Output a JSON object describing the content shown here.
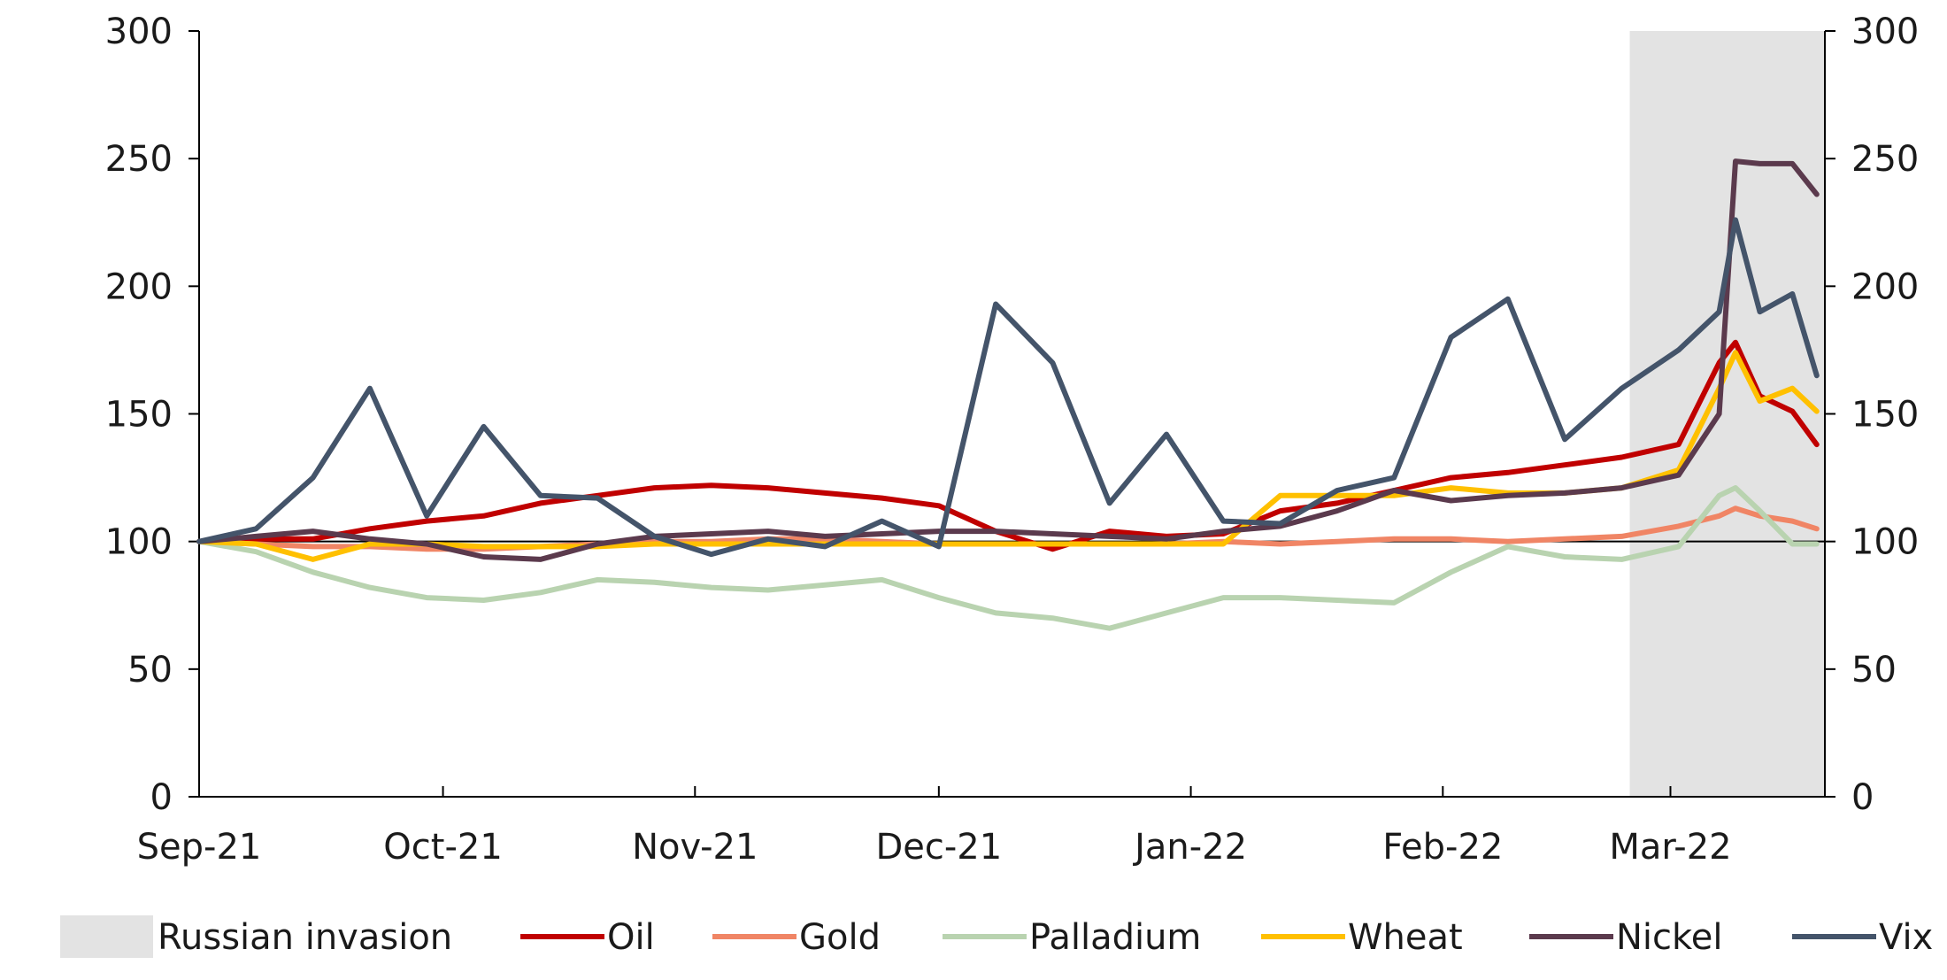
{
  "chart_data": {
    "type": "line",
    "title": "",
    "xlabel": "",
    "ylabel": "",
    "ylim": [
      0,
      300
    ],
    "y2lim": [
      0,
      300
    ],
    "y_ticks": [
      0,
      50,
      100,
      150,
      200,
      250,
      300
    ],
    "y_tick_labels": [
      "0",
      "50",
      "100",
      "150",
      "200",
      "250",
      "300"
    ],
    "x_tick_labels": [
      "Sep-21",
      "Oct-21",
      "Nov-21",
      "Dec-21",
      "Jan-22",
      "Feb-22",
      "Mar-22"
    ],
    "x_ticks": [
      "2021-09-01",
      "2021-10-01",
      "2021-11-01",
      "2021-12-01",
      "2022-01-01",
      "2022-02-01",
      "2022-03-01"
    ],
    "x_range": [
      "2021-09-01",
      "2022-03-20"
    ],
    "reference_line": 100,
    "grid": false,
    "legend_position": "bottom",
    "shaded_region": {
      "label": "Russian invasion",
      "x_start": "2022-02-24",
      "x_end": "2022-03-20",
      "color": "#e3e3e3"
    },
    "x": [
      "2021-09-01",
      "2021-09-08",
      "2021-09-15",
      "2021-09-22",
      "2021-09-29",
      "2021-10-06",
      "2021-10-13",
      "2021-10-20",
      "2021-10-27",
      "2021-11-03",
      "2021-11-10",
      "2021-11-17",
      "2021-11-24",
      "2021-12-01",
      "2021-12-08",
      "2021-12-15",
      "2021-12-22",
      "2021-12-29",
      "2022-01-05",
      "2022-01-12",
      "2022-01-19",
      "2022-01-26",
      "2022-02-02",
      "2022-02-09",
      "2022-02-16",
      "2022-02-23",
      "2022-03-02",
      "2022-03-07",
      "2022-03-09",
      "2022-03-12",
      "2022-03-16",
      "2022-03-19"
    ],
    "series": [
      {
        "name": "Oil",
        "color": "#c00000",
        "values": [
          100,
          101,
          101,
          105,
          108,
          110,
          115,
          118,
          121,
          122,
          121,
          119,
          117,
          114,
          104,
          97,
          104,
          102,
          103,
          112,
          115,
          120,
          125,
          127,
          130,
          133,
          138,
          170,
          178,
          157,
          151,
          138
        ]
      },
      {
        "name": "Gold",
        "color": "#f08565",
        "values": [
          100,
          99,
          98,
          98,
          97,
          97,
          98,
          99,
          100,
          100,
          101,
          101,
          100,
          99,
          99,
          99,
          99,
          99,
          100,
          99,
          100,
          101,
          101,
          100,
          101,
          102,
          106,
          110,
          113,
          110,
          108,
          105
        ]
      },
      {
        "name": "Palladium",
        "color": "#b9d3b0",
        "values": [
          100,
          96,
          88,
          82,
          78,
          77,
          80,
          85,
          84,
          82,
          81,
          83,
          85,
          78,
          72,
          70,
          66,
          72,
          78,
          78,
          77,
          76,
          88,
          98,
          94,
          93,
          98,
          118,
          121,
          112,
          99,
          99
        ]
      },
      {
        "name": "Wheat",
        "color": "#ffc000",
        "values": [
          100,
          99,
          93,
          99,
          99,
          98,
          98,
          98,
          99,
          99,
          99,
          99,
          99,
          99,
          99,
          99,
          99,
          99,
          99,
          118,
          118,
          118,
          121,
          119,
          119,
          121,
          128,
          160,
          174,
          155,
          160,
          151
        ]
      },
      {
        "name": "Nickel",
        "color": "#5b3a4d",
        "values": [
          100,
          102,
          104,
          101,
          99,
          94,
          93,
          99,
          102,
          103,
          104,
          102,
          103,
          104,
          104,
          103,
          102,
          101,
          104,
          106,
          112,
          120,
          116,
          118,
          119,
          121,
          126,
          150,
          249,
          248,
          248,
          236
        ]
      },
      {
        "name": "Vix",
        "color": "#44546a",
        "values": [
          100,
          105,
          125,
          160,
          110,
          145,
          118,
          117,
          102,
          95,
          101,
          98,
          108,
          98,
          193,
          170,
          115,
          142,
          108,
          107,
          120,
          125,
          180,
          195,
          140,
          160,
          175,
          190,
          226,
          190,
          197,
          165
        ]
      }
    ]
  }
}
